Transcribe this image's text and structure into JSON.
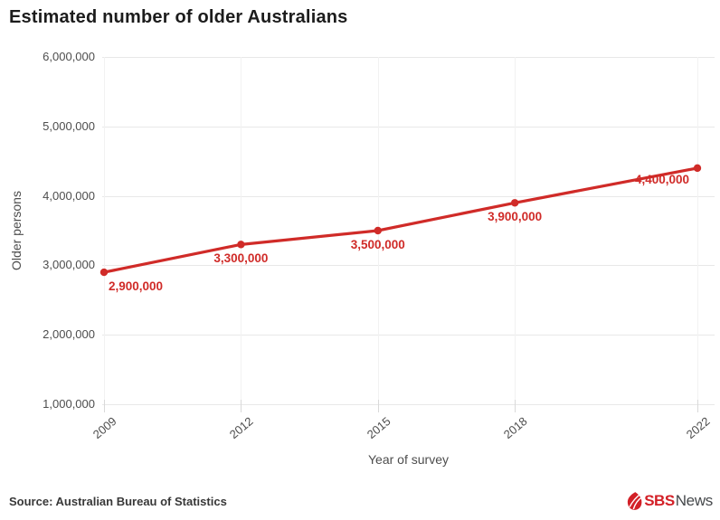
{
  "title": "Estimated number of older Australians",
  "chart_data": {
    "type": "line",
    "title": "Estimated number of older Australians",
    "x": [
      2009,
      2012,
      2015,
      2018,
      2022
    ],
    "x_tick_labels": [
      "2009",
      "2012",
      "2015",
      "2018",
      "2022"
    ],
    "values": [
      2900000,
      3300000,
      3500000,
      3900000,
      4400000
    ],
    "point_labels": [
      "2,900,000",
      "3,300,000",
      "3,500,000",
      "3,900,000",
      "4,400,000"
    ],
    "series_name": "Older persons",
    "xlabel": "Year of survey",
    "ylabel": "Older persons",
    "xlim": [
      2009,
      2022
    ],
    "ylim": [
      1000000,
      6000000
    ],
    "y_ticks": [
      1000000,
      2000000,
      3000000,
      4000000,
      5000000,
      6000000
    ],
    "y_tick_labels": [
      "1,000,000",
      "2,000,000",
      "3,000,000",
      "4,000,000",
      "5,000,000",
      "6,000,000"
    ],
    "grid": true,
    "legend": "none",
    "line_color": "#d02b28"
  },
  "footer": {
    "source": "Source: Australian Bureau of Statistics",
    "logo": {
      "brand": "SBS",
      "suffix": "News"
    }
  },
  "colors": {
    "accent": "#d02b28",
    "title_text": "#1c1c1c",
    "axis_text": "#4d4d4d",
    "grid": "#e8e8e8",
    "background": "#ffffff",
    "logo_red": "#d32027",
    "logo_news": "#45484b"
  }
}
